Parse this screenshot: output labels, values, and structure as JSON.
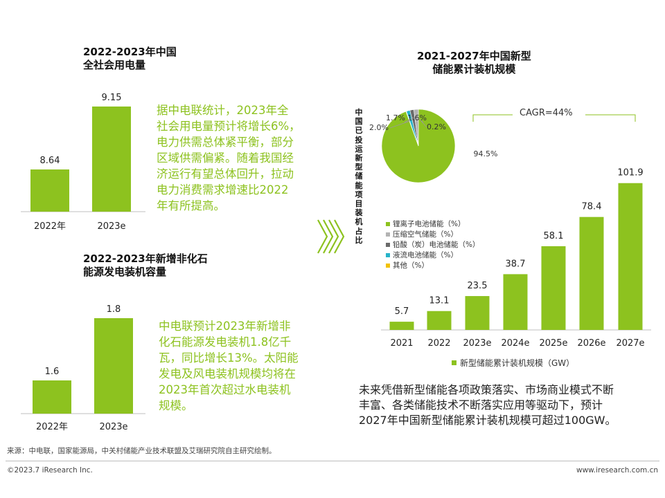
{
  "colors": {
    "accent": "#8dc21f",
    "bar": "#8dc21f",
    "pie_main": "#8dc21f",
    "text": "#222222"
  },
  "section1": {
    "title": "2022-2023年中国\n全社会用电量",
    "paragraph": "据中电联统计，2023年全\n社会用电量预计将增长6%，\n电力供需总体紧平衡，部分\n区域供需偏紧。随着我国经\n济运行有望总体回升，拉动\n电力消费需求增速比2022\n年有所提高。"
  },
  "section2": {
    "title": "2022-2023年新增非化石\n能源发电装机容量",
    "paragraph": "中电联预计2023年新增非\n化石能源发电装机1.8亿千\n瓦，同比增长13%。太阳能\n发电及风电装机规模均将在\n2023年首次超过水电装机\n规模。"
  },
  "section3": {
    "title": "2021-2027年中国新型\n储能累计装机规模",
    "pie_title": "中国已投运新型储能项目装机占比",
    "cagr_label": "CAGR=44%",
    "conclusion": "未来凭借新型储能各项政策落实、市场商业模式不断\n丰富、各类储能技术不断落实应用等驱动下，预计\n2027年中国新型储能累计装机规模可超过100GW。"
  },
  "chart_data": [
    {
      "type": "bar",
      "title": "2022-2023年中国全社会用电量",
      "categories": [
        "2022年",
        "2023e"
      ],
      "values": [
        8.64,
        9.15
      ],
      "value_labels": [
        "8.64",
        "9.15"
      ]
    },
    {
      "type": "bar",
      "title": "2022-2023年新增非化石能源发电装机容量",
      "categories": [
        "2022年",
        "2023e"
      ],
      "values": [
        1.6,
        1.8
      ],
      "value_labels": [
        "1.6",
        "1.8"
      ]
    },
    {
      "type": "pie",
      "title": "中国已投运新型储能项目装机占比",
      "slices": [
        {
          "name": "锂离子电池储能（%）",
          "value": 94.5,
          "label": "94.5%",
          "color": "#8dc21f"
        },
        {
          "name": "压缩空气储能（%）",
          "value": 2.0,
          "label": "2.0%",
          "color": "#b3b3b3"
        },
        {
          "name": "铅酸（炭）电池储能（%）",
          "value": 1.7,
          "label": "1.7%",
          "color": "#6a6a6a"
        },
        {
          "name": "液流电池储能（%）",
          "value": 1.6,
          "label": "1.6%",
          "color": "#27b3c9"
        },
        {
          "name": "其他（%）",
          "value": 0.2,
          "label": "0.2%",
          "color": "#f2c200"
        }
      ]
    },
    {
      "type": "bar",
      "title": "2021-2027年中国新型储能累计装机规模",
      "categories": [
        "2021",
        "2022",
        "2023e",
        "2024e",
        "2025e",
        "2026e",
        "2027e"
      ],
      "values": [
        5.7,
        13.1,
        23.5,
        38.7,
        58.1,
        78.4,
        101.9
      ],
      "value_labels": [
        "5.7",
        "13.1",
        "23.5",
        "38.7",
        "58.1",
        "78.4",
        "101.9"
      ],
      "legend": "新型储能累计装机规模（GW）",
      "ylim": [
        0,
        120
      ],
      "annotation": "CAGR=44%"
    }
  ],
  "source": "来源：中电联，国家能源局，中关村储能产业技术联盟及艾瑞研究院自主研究绘制。",
  "footer": {
    "copyright": "©2023.7 iResearch Inc.",
    "website": "www.iresearch.com.cn"
  }
}
